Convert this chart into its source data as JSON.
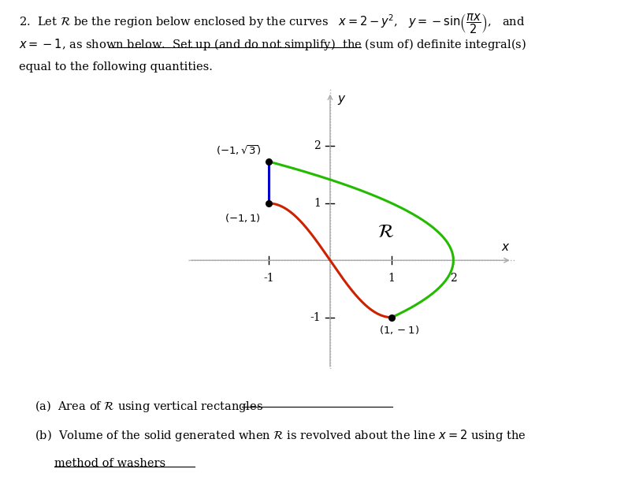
{
  "point1": [
    -1,
    1.7320508
  ],
  "point1_label": "$(-1, \\sqrt{3})$",
  "point2": [
    -1,
    1
  ],
  "point2_label": "$(-1,1)$",
  "point3": [
    1,
    -1
  ],
  "point3_label": "$(1,-1)$",
  "region_label": "$\\mathcal{R}$",
  "xlim": [
    -2.3,
    3.0
  ],
  "ylim": [
    -1.9,
    3.0
  ],
  "dotted_color": "#aaaaaa",
  "green_color": "#22bb00",
  "red_color": "#cc2200",
  "blue_color": "#0000cc",
  "bg_color": "#ffffff",
  "x_ticks": [
    -1,
    1,
    2
  ],
  "y_ticks": [
    -1,
    1,
    2
  ]
}
